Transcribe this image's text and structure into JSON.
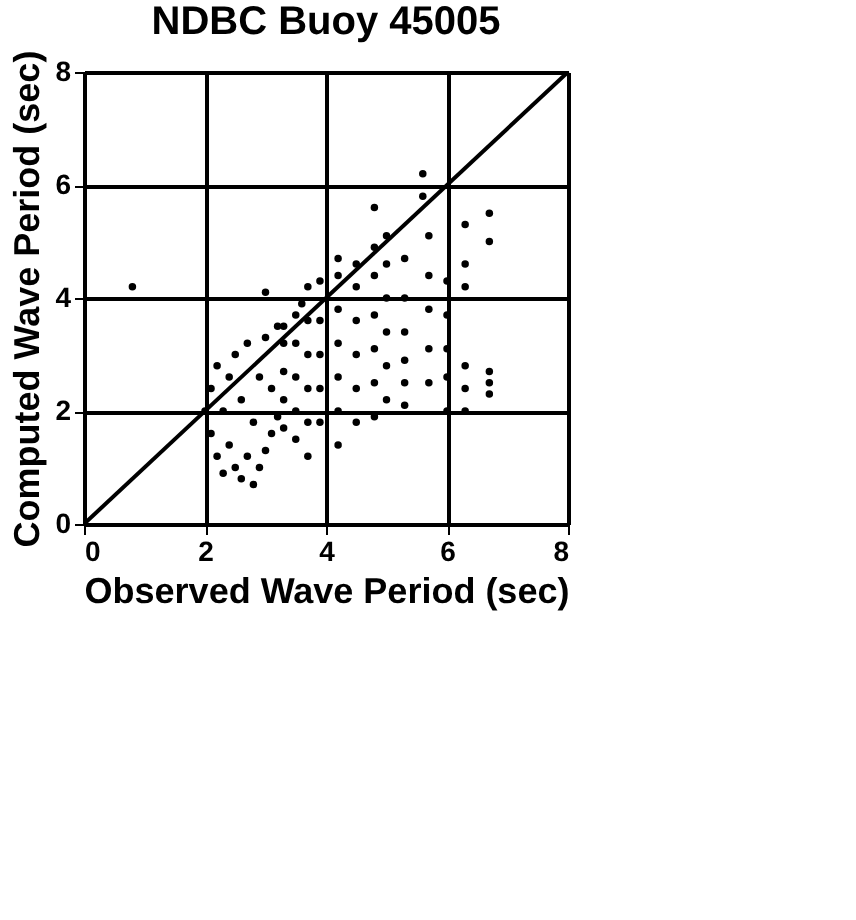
{
  "chart_data": {
    "type": "scatter",
    "title": "NDBC Buoy 45005",
    "xlabel": "Observed Wave Period (sec)",
    "ylabel": "Computed Wave Period (sec)",
    "xlim": [
      0,
      8
    ],
    "ylim": [
      0,
      8
    ],
    "xticks": [
      0,
      2,
      4,
      6,
      8
    ],
    "yticks": [
      0,
      2,
      4,
      6,
      8
    ],
    "grid": true,
    "series": [
      {
        "marker": "circle",
        "color": "#000000",
        "x": [
          2.0,
          2.1,
          2.1,
          2.2,
          2.2,
          2.3,
          2.3,
          2.4,
          2.4,
          2.5,
          2.5,
          2.6,
          2.6,
          2.7,
          2.7,
          2.8,
          2.8,
          2.9,
          2.9,
          3.0,
          3.0,
          3.1,
          3.1,
          3.2,
          3.2,
          3.3,
          3.3,
          3.3,
          3.3,
          3.3,
          3.5,
          3.5,
          3.5,
          3.5,
          3.5,
          3.7,
          3.7,
          3.7,
          3.7,
          3.7,
          3.7,
          3.9,
          3.9,
          3.9,
          3.9,
          3.9,
          4.2,
          4.2,
          4.2,
          4.2,
          4.2,
          4.2,
          4.2,
          4.5,
          4.5,
          4.5,
          4.5,
          4.5,
          4.5,
          4.8,
          4.8,
          4.8,
          4.8,
          4.8,
          4.8,
          5.0,
          5.0,
          5.0,
          5.0,
          5.0,
          5.0,
          5.3,
          5.3,
          5.3,
          5.3,
          5.3,
          5.3,
          5.7,
          5.7,
          5.7,
          5.7,
          5.7,
          6.0,
          6.0,
          6.0,
          6.0,
          6.0,
          6.3,
          6.3,
          6.3,
          6.3,
          6.3,
          6.3,
          6.7,
          6.7,
          6.7,
          6.7,
          6.7,
          5.6,
          5.6,
          0.8,
          4.8,
          3.0,
          3.6
        ],
        "values": [
          2.0,
          1.6,
          2.4,
          1.2,
          2.8,
          0.9,
          2.0,
          1.4,
          2.6,
          1.0,
          3.0,
          0.8,
          2.2,
          1.2,
          3.2,
          0.7,
          1.8,
          1.0,
          2.6,
          1.3,
          3.3,
          1.6,
          2.4,
          1.9,
          3.5,
          1.7,
          2.2,
          2.7,
          3.2,
          3.5,
          1.5,
          2.0,
          2.6,
          3.2,
          3.7,
          1.2,
          1.8,
          2.4,
          3.0,
          3.6,
          4.2,
          1.8,
          2.4,
          3.0,
          3.6,
          4.3,
          1.4,
          2.0,
          2.6,
          3.2,
          3.8,
          4.4,
          4.7,
          1.8,
          2.4,
          3.0,
          3.6,
          4.2,
          4.6,
          1.9,
          2.5,
          3.1,
          3.7,
          4.4,
          4.9,
          2.2,
          2.8,
          3.4,
          4.0,
          4.6,
          5.1,
          2.1,
          2.5,
          2.9,
          3.4,
          4.0,
          4.7,
          2.5,
          3.1,
          3.8,
          4.4,
          5.1,
          2.0,
          2.6,
          3.1,
          3.7,
          4.3,
          2.0,
          2.4,
          2.8,
          4.2,
          4.6,
          5.3,
          2.3,
          2.5,
          2.7,
          5.0,
          5.5,
          6.2,
          5.8,
          4.2,
          5.6,
          4.1,
          3.9
        ]
      },
      {
        "type": "line",
        "color": "#000000",
        "x": [
          0,
          8
        ],
        "values": [
          0,
          8
        ]
      }
    ]
  }
}
